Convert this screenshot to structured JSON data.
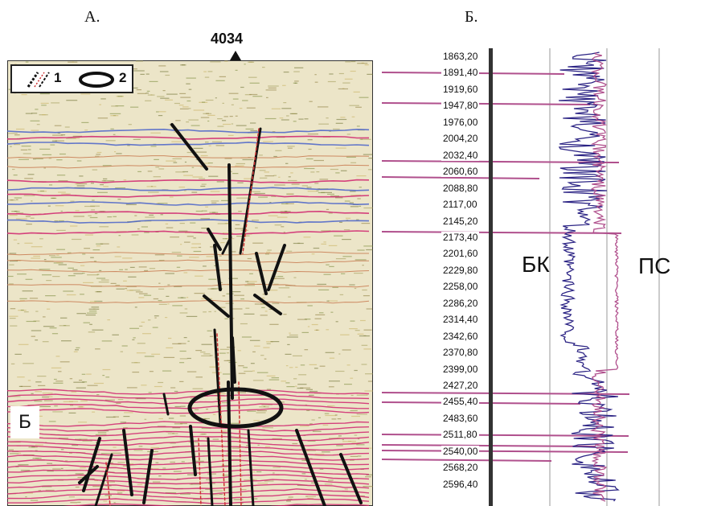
{
  "panels": {
    "left_label": "А.",
    "right_label": "Б."
  },
  "seismic": {
    "well_number": "4034",
    "legend": [
      {
        "key": "1",
        "symbol": "dashed-lines-icon"
      },
      {
        "key": "2",
        "symbol": "ellipse-icon"
      }
    ],
    "horizon_label": "Б"
  },
  "log": {
    "curve_labels": {
      "left": "БК",
      "right": "ПС"
    },
    "depths": [
      "1863,20",
      "1891,40",
      "1919,60",
      "1947,80",
      "1976,00",
      "2004,20",
      "2032,40",
      "2060,60",
      "2088,80",
      "2117,00",
      "2145,20",
      "2173,40",
      "2201,60",
      "2229,80",
      "2258,00",
      "2286,20",
      "2314,40",
      "2342,60",
      "2370,80",
      "2399,00",
      "2427,20",
      "2455,40",
      "2483,60",
      "2511,80",
      "2540,00",
      "2568,20",
      "2596,40"
    ],
    "colors": {
      "bk": "#2b2384",
      "ps": "#b0508d"
    }
  }
}
